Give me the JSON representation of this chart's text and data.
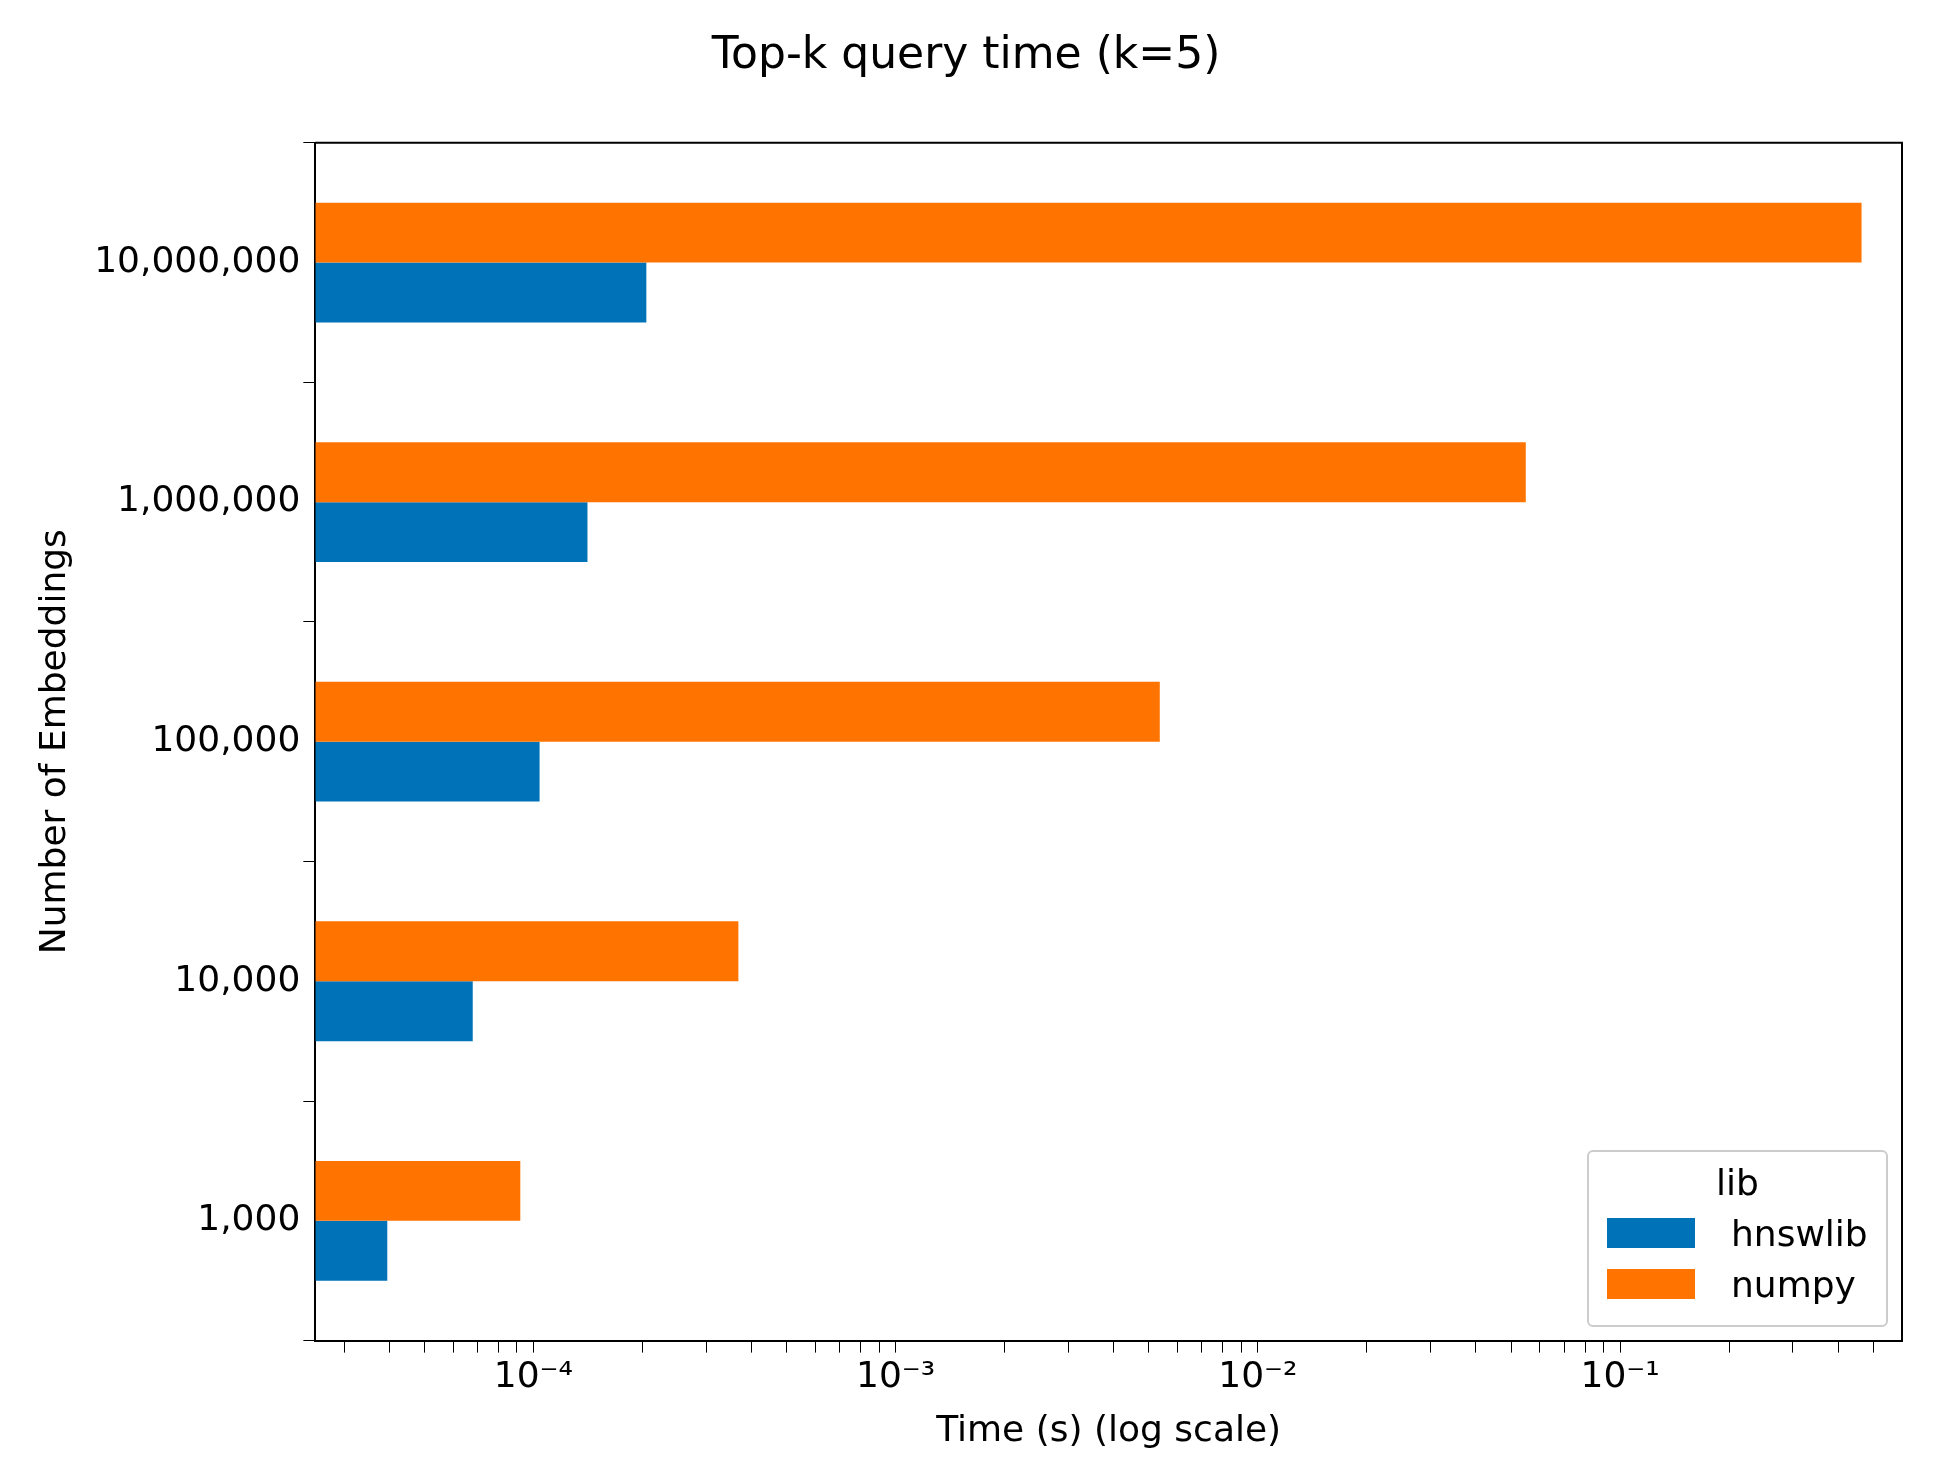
{
  "chart_data": {
    "type": "bar",
    "orientation": "horizontal",
    "title": "Top-k query time (k=5)",
    "xlabel": "Time (s) (log scale)",
    "ylabel": "Number of Embeddings",
    "legend_title": "lib",
    "legend": "bottom right",
    "grid": false,
    "log": "x",
    "categories": [
      "10,000,000",
      "1,000,000",
      "100,000",
      "10,000",
      "1,000"
    ],
    "series": [
      {
        "name": "hnswlib",
        "color": "#0072b8",
        "values": [
          0.000205,
          0.000141,
          0.000104,
          6.8e-05,
          3.95e-05
        ]
      },
      {
        "name": "numpy",
        "color": "#ff7400",
        "values": [
          0.464,
          0.0549,
          0.00536,
          0.000368,
          9.2e-05
        ]
      }
    ],
    "xlim": [
      2.5e-05,
      0.6
    ],
    "xticks": [
      {
        "value": 3e-05,
        "label": null
      },
      {
        "value": 4e-05,
        "label": null
      },
      {
        "value": 5e-05,
        "label": null
      },
      {
        "value": 6e-05,
        "label": null
      },
      {
        "value": 7e-05,
        "label": null
      },
      {
        "value": 8e-05,
        "label": null
      },
      {
        "value": 9e-05,
        "label": null
      },
      {
        "value": 0.0001,
        "label": "10⁻⁴"
      },
      {
        "value": 0.0002,
        "label": null
      },
      {
        "value": 0.0003,
        "label": null
      },
      {
        "value": 0.0004,
        "label": null
      },
      {
        "value": 0.0005,
        "label": null
      },
      {
        "value": 0.0006,
        "label": null
      },
      {
        "value": 0.0007,
        "label": null
      },
      {
        "value": 0.0008,
        "label": null
      },
      {
        "value": 0.0009,
        "label": null
      },
      {
        "value": 0.001,
        "label": "10⁻³"
      },
      {
        "value": 0.002,
        "label": null
      },
      {
        "value": 0.003,
        "label": null
      },
      {
        "value": 0.004,
        "label": null
      },
      {
        "value": 0.005,
        "label": null
      },
      {
        "value": 0.006,
        "label": null
      },
      {
        "value": 0.007,
        "label": null
      },
      {
        "value": 0.008,
        "label": null
      },
      {
        "value": 0.009,
        "label": null
      },
      {
        "value": 0.01,
        "label": "10⁻²"
      },
      {
        "value": 0.02,
        "label": null
      },
      {
        "value": 0.03,
        "label": null
      },
      {
        "value": 0.04,
        "label": null
      },
      {
        "value": 0.05,
        "label": null
      },
      {
        "value": 0.06,
        "label": null
      },
      {
        "value": 0.07,
        "label": null
      },
      {
        "value": 0.08,
        "label": null
      },
      {
        "value": 0.09,
        "label": null
      },
      {
        "value": 0.1,
        "label": "10⁻¹"
      },
      {
        "value": 0.2,
        "label": null
      },
      {
        "value": 0.3,
        "label": null
      },
      {
        "value": 0.4,
        "label": null
      },
      {
        "value": 0.5,
        "label": null
      }
    ]
  }
}
